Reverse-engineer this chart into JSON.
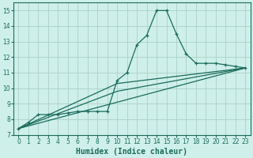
{
  "title": "",
  "xlabel": "Humidex (Indice chaleur)",
  "ylabel": "",
  "xlim": [
    -0.5,
    23.5
  ],
  "ylim": [
    7,
    15.5
  ],
  "yticks": [
    7,
    8,
    9,
    10,
    11,
    12,
    13,
    14,
    15
  ],
  "xticks": [
    0,
    1,
    2,
    3,
    4,
    5,
    6,
    7,
    8,
    9,
    10,
    11,
    12,
    13,
    14,
    15,
    16,
    17,
    18,
    19,
    20,
    21,
    22,
    23
  ],
  "bg_color": "#cff0ea",
  "grid_color": "#b0d4cc",
  "line_color": "#1a6b5a",
  "line1_x": [
    0,
    1,
    2,
    3,
    4,
    5,
    6,
    7,
    8,
    9,
    10,
    11,
    12,
    13,
    14,
    15,
    16,
    17,
    18,
    19,
    20,
    21,
    22,
    23
  ],
  "line1_y": [
    7.4,
    7.8,
    8.3,
    8.3,
    8.3,
    8.4,
    8.5,
    8.5,
    8.5,
    8.5,
    10.5,
    11.0,
    12.8,
    13.4,
    15.0,
    15.0,
    13.5,
    12.2,
    11.6,
    11.6,
    11.6,
    11.5,
    11.4,
    11.3
  ],
  "line2_x": [
    0,
    23
  ],
  "line2_y": [
    7.4,
    11.3
  ],
  "line3_x": [
    0,
    10,
    23
  ],
  "line3_y": [
    7.4,
    9.8,
    11.3
  ],
  "line4_x": [
    0,
    10,
    23
  ],
  "line4_y": [
    7.4,
    10.3,
    11.3
  ]
}
